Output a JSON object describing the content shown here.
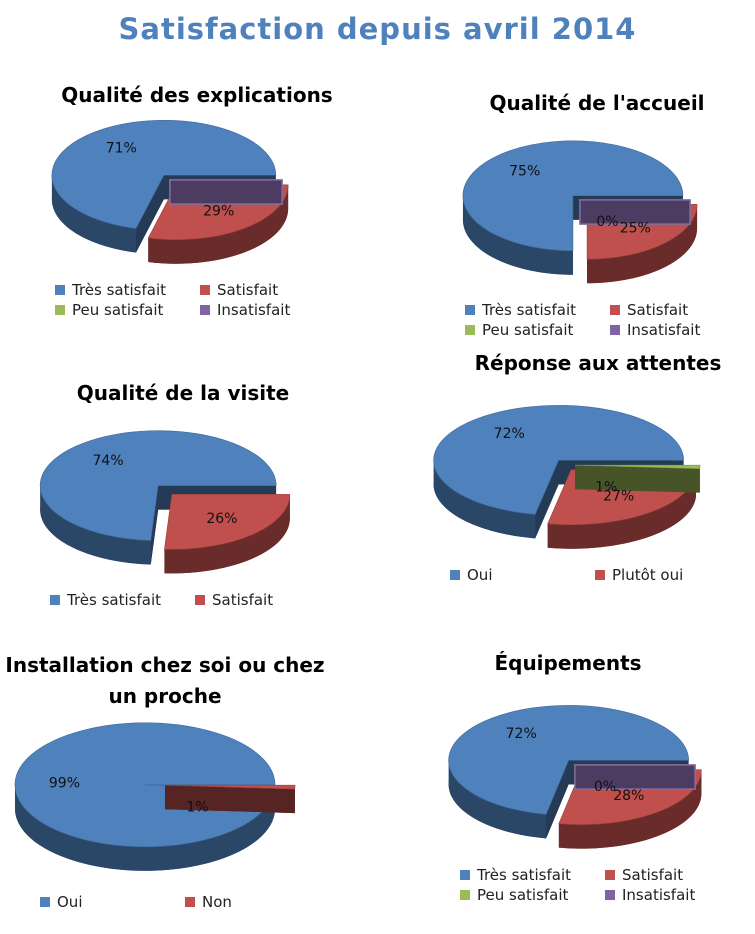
{
  "title": "Satisfaction depuis avril 2014",
  "chart_data": [
    {
      "type": "pie",
      "title": "Qualité des explications",
      "categories": [
        "Très satisfait",
        "Satisfait",
        "Peu satisfait",
        "Insatisfait"
      ],
      "values": [
        71,
        29,
        0,
        0
      ],
      "value_labels": [
        "71%",
        "29%",
        null,
        null
      ],
      "colors": [
        "#4f81bd",
        "#c0504d",
        "#9bbb59",
        "#8064a2"
      ]
    },
    {
      "type": "pie",
      "title": "Qualité de l'accueil",
      "categories": [
        "Très satisfait",
        "Satisfait",
        "Peu satisfait",
        "Insatisfait"
      ],
      "values": [
        75,
        25,
        0,
        0
      ],
      "value_labels": [
        "75%",
        "25%",
        "0%",
        null
      ],
      "colors": [
        "#4f81bd",
        "#c0504d",
        "#9bbb59",
        "#8064a2"
      ]
    },
    {
      "type": "pie",
      "title": "Qualité de la visite",
      "categories": [
        "Très satisfait",
        "Satisfait"
      ],
      "values": [
        74,
        26
      ],
      "value_labels": [
        "74%",
        "26%"
      ],
      "colors": [
        "#4f81bd",
        "#c0504d"
      ]
    },
    {
      "type": "pie",
      "title": "Réponse aux attentes",
      "categories": [
        "Oui",
        "Plutôt oui",
        null
      ],
      "values": [
        72,
        27,
        1
      ],
      "value_labels": [
        "72%",
        "27%",
        "1%"
      ],
      "colors": [
        "#4f81bd",
        "#c0504d",
        "#9bbb59"
      ]
    },
    {
      "type": "pie",
      "title": "Installation chez soi ou chez un proche",
      "categories": [
        "Oui",
        "Non"
      ],
      "values": [
        99,
        1
      ],
      "value_labels": [
        "99%",
        "1%"
      ],
      "colors": [
        "#4f81bd",
        "#c0504d"
      ]
    },
    {
      "type": "pie",
      "title": "Équipements",
      "categories": [
        "Très satisfait",
        "Satisfait",
        "Peu satisfait",
        "Insatisfait"
      ],
      "values": [
        72,
        28,
        0,
        0
      ],
      "value_labels": [
        "72%",
        "28%",
        "0%",
        null
      ],
      "colors": [
        "#4f81bd",
        "#c0504d",
        "#9bbb59",
        "#8064a2"
      ]
    }
  ]
}
